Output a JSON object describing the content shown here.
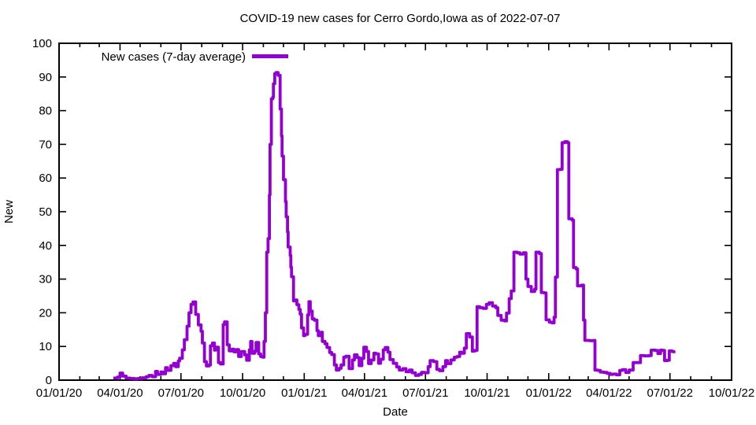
{
  "window": {
    "background": "#ffffff",
    "text_color": "#000000"
  },
  "chart_data": {
    "type": "line",
    "title": "COVID-19 new cases for Cerro Gordo,Iowa as of 2022-07-07",
    "xlabel": "Date",
    "ylabel": "New",
    "grid": false,
    "legend": {
      "position": "top-left-inside",
      "entries": [
        {
          "label": "New cases (7-day average)",
          "color": "#9400d3"
        }
      ]
    },
    "line_color": "#9400d3",
    "line_style": "steps",
    "x_range": [
      "2020-01-01",
      "2022-10-01"
    ],
    "ylim": [
      0,
      100
    ],
    "y_ticks": [
      0,
      10,
      20,
      30,
      40,
      50,
      60,
      70,
      80,
      90,
      100
    ],
    "x_ticks": [
      {
        "date": "2020-01-01",
        "label": "01/01/20"
      },
      {
        "date": "2020-04-01",
        "label": "04/01/20"
      },
      {
        "date": "2020-07-01",
        "label": "07/01/20"
      },
      {
        "date": "2020-10-01",
        "label": "10/01/20"
      },
      {
        "date": "2021-01-01",
        "label": "01/01/21"
      },
      {
        "date": "2021-04-01",
        "label": "04/01/21"
      },
      {
        "date": "2021-07-01",
        "label": "07/01/21"
      },
      {
        "date": "2021-10-01",
        "label": "10/01/21"
      },
      {
        "date": "2022-01-01",
        "label": "01/01/22"
      },
      {
        "date": "2022-04-01",
        "label": "04/01/22"
      },
      {
        "date": "2022-07-01",
        "label": "07/01/22"
      },
      {
        "date": "2022-10-01",
        "label": "10/01/22"
      }
    ],
    "minor_x_ticks": "monthly",
    "series": [
      {
        "name": "New cases (7-day average)",
        "color": "#9400d3",
        "points": [
          [
            "2020-03-22",
            0.6
          ],
          [
            "2020-03-28",
            0.9
          ],
          [
            "2020-04-01",
            2.1
          ],
          [
            "2020-04-05",
            1.2
          ],
          [
            "2020-04-10",
            0.6
          ],
          [
            "2020-04-16",
            0.5
          ],
          [
            "2020-04-22",
            0.4
          ],
          [
            "2020-04-28",
            0.5
          ],
          [
            "2020-05-04",
            0.7
          ],
          [
            "2020-05-10",
            1.0
          ],
          [
            "2020-05-14",
            1.4
          ],
          [
            "2020-05-19",
            1.0
          ],
          [
            "2020-05-24",
            2.6
          ],
          [
            "2020-05-27",
            1.7
          ],
          [
            "2020-06-01",
            2.4
          ],
          [
            "2020-06-04",
            1.9
          ],
          [
            "2020-06-08",
            3.7
          ],
          [
            "2020-06-11",
            2.9
          ],
          [
            "2020-06-16",
            4.3
          ],
          [
            "2020-06-20",
            5.0
          ],
          [
            "2020-06-23",
            4.0
          ],
          [
            "2020-06-27",
            5.7
          ],
          [
            "2020-06-29",
            6.5
          ],
          [
            "2020-07-03",
            9.0
          ],
          [
            "2020-07-06",
            12.0
          ],
          [
            "2020-07-10",
            16.0
          ],
          [
            "2020-07-13",
            20.0
          ],
          [
            "2020-07-16",
            22.5
          ],
          [
            "2020-07-19",
            23.2
          ],
          [
            "2020-07-23",
            19.5
          ],
          [
            "2020-07-27",
            16.4
          ],
          [
            "2020-07-31",
            14.5
          ],
          [
            "2020-08-02",
            11.0
          ],
          [
            "2020-08-05",
            5.5
          ],
          [
            "2020-08-08",
            4.2
          ],
          [
            "2020-08-12",
            4.5
          ],
          [
            "2020-08-14",
            10.2
          ],
          [
            "2020-08-17",
            11.0
          ],
          [
            "2020-08-20",
            8.9
          ],
          [
            "2020-08-22",
            9.8
          ],
          [
            "2020-08-26",
            5.2
          ],
          [
            "2020-08-29",
            4.8
          ],
          [
            "2020-09-02",
            16.5
          ],
          [
            "2020-09-04",
            17.3
          ],
          [
            "2020-09-08",
            10.5
          ],
          [
            "2020-09-11",
            8.7
          ],
          [
            "2020-09-15",
            9.2
          ],
          [
            "2020-09-18",
            8.4
          ],
          [
            "2020-09-22",
            9.1
          ],
          [
            "2020-09-25",
            7.0
          ],
          [
            "2020-09-29",
            8.5
          ],
          [
            "2020-10-04",
            7.5
          ],
          [
            "2020-10-07",
            5.9
          ],
          [
            "2020-10-11",
            9.0
          ],
          [
            "2020-10-13",
            11.5
          ],
          [
            "2020-10-15",
            8.0
          ],
          [
            "2020-10-19",
            8.6
          ],
          [
            "2020-10-21",
            11.2
          ],
          [
            "2020-10-25",
            7.8
          ],
          [
            "2020-10-28",
            7.0
          ],
          [
            "2020-10-31",
            6.8
          ],
          [
            "2020-11-02",
            11.5
          ],
          [
            "2020-11-04",
            20.0
          ],
          [
            "2020-11-06",
            38.0
          ],
          [
            "2020-11-08",
            42.0
          ],
          [
            "2020-11-10",
            55.0
          ],
          [
            "2020-11-11",
            70.0
          ],
          [
            "2020-11-13",
            83.5
          ],
          [
            "2020-11-15",
            84.0
          ],
          [
            "2020-11-16",
            88.0
          ],
          [
            "2020-11-18",
            91.0
          ],
          [
            "2020-11-20",
            91.3
          ],
          [
            "2020-11-23",
            90.5
          ],
          [
            "2020-11-26",
            80.5
          ],
          [
            "2020-11-28",
            72.5
          ],
          [
            "2020-11-29",
            66.5
          ],
          [
            "2020-12-01",
            59.5
          ],
          [
            "2020-12-04",
            53.0
          ],
          [
            "2020-12-05",
            48.5
          ],
          [
            "2020-12-07",
            44.0
          ],
          [
            "2020-12-08",
            39.5
          ],
          [
            "2020-12-11",
            37.0
          ],
          [
            "2020-12-12",
            33.5
          ],
          [
            "2020-12-13",
            30.7
          ],
          [
            "2020-12-16",
            23.5
          ],
          [
            "2020-12-19",
            23.8
          ],
          [
            "2020-12-21",
            22.4
          ],
          [
            "2020-12-24",
            21.0
          ],
          [
            "2020-12-26",
            19.6
          ],
          [
            "2020-12-28",
            15.5
          ],
          [
            "2020-12-31",
            13.2
          ],
          [
            "2021-01-02",
            13.6
          ],
          [
            "2021-01-06",
            19.4
          ],
          [
            "2021-01-08",
            23.3
          ],
          [
            "2021-01-10",
            20.5
          ],
          [
            "2021-01-13",
            18.2
          ],
          [
            "2021-01-16",
            17.8
          ],
          [
            "2021-01-20",
            14.7
          ],
          [
            "2021-01-22",
            13.2
          ],
          [
            "2021-01-26",
            14.2
          ],
          [
            "2021-01-28",
            11.5
          ],
          [
            "2021-02-01",
            10.8
          ],
          [
            "2021-02-04",
            9.7
          ],
          [
            "2021-02-08",
            8.2
          ],
          [
            "2021-02-11",
            7.6
          ],
          [
            "2021-02-15",
            4.5
          ],
          [
            "2021-02-18",
            3.0
          ],
          [
            "2021-02-22",
            3.5
          ],
          [
            "2021-02-25",
            4.5
          ],
          [
            "2021-03-01",
            6.8
          ],
          [
            "2021-03-04",
            7.1
          ],
          [
            "2021-03-09",
            3.4
          ],
          [
            "2021-03-14",
            6.0
          ],
          [
            "2021-03-17",
            7.5
          ],
          [
            "2021-03-21",
            6.7
          ],
          [
            "2021-03-24",
            4.3
          ],
          [
            "2021-03-28",
            6.5
          ],
          [
            "2021-03-31",
            9.8
          ],
          [
            "2021-04-04",
            8.5
          ],
          [
            "2021-04-07",
            4.9
          ],
          [
            "2021-04-11",
            6.0
          ],
          [
            "2021-04-15",
            8.0
          ],
          [
            "2021-04-18",
            7.8
          ],
          [
            "2021-04-22",
            5.0
          ],
          [
            "2021-04-25",
            6.2
          ],
          [
            "2021-04-29",
            9.0
          ],
          [
            "2021-05-02",
            9.7
          ],
          [
            "2021-05-06",
            8.3
          ],
          [
            "2021-05-09",
            6.1
          ],
          [
            "2021-05-14",
            5.0
          ],
          [
            "2021-05-19",
            3.9
          ],
          [
            "2021-05-23",
            3.0
          ],
          [
            "2021-05-28",
            3.4
          ],
          [
            "2021-06-02",
            2.5
          ],
          [
            "2021-06-07",
            3.0
          ],
          [
            "2021-06-11",
            2.2
          ],
          [
            "2021-06-16",
            1.4
          ],
          [
            "2021-06-21",
            1.7
          ],
          [
            "2021-06-25",
            2.3
          ],
          [
            "2021-06-30",
            2.2
          ],
          [
            "2021-07-05",
            4.0
          ],
          [
            "2021-07-08",
            5.8
          ],
          [
            "2021-07-13",
            5.5
          ],
          [
            "2021-07-18",
            3.2
          ],
          [
            "2021-07-22",
            2.8
          ],
          [
            "2021-07-27",
            4.0
          ],
          [
            "2021-07-31",
            5.8
          ],
          [
            "2021-08-03",
            4.9
          ],
          [
            "2021-08-08",
            6.0
          ],
          [
            "2021-08-13",
            6.8
          ],
          [
            "2021-08-17",
            7.0
          ],
          [
            "2021-08-21",
            8.3
          ],
          [
            "2021-08-24",
            8.0
          ],
          [
            "2021-08-28",
            9.5
          ],
          [
            "2021-08-31",
            13.8
          ],
          [
            "2021-09-05",
            12.8
          ],
          [
            "2021-09-09",
            8.6
          ],
          [
            "2021-09-12",
            8.8
          ],
          [
            "2021-09-16",
            21.8
          ],
          [
            "2021-09-20",
            21.5
          ],
          [
            "2021-09-25",
            21.3
          ],
          [
            "2021-09-30",
            22.5
          ],
          [
            "2021-10-04",
            23.0
          ],
          [
            "2021-10-09",
            22.0
          ],
          [
            "2021-10-14",
            21.5
          ],
          [
            "2021-10-17",
            19.2
          ],
          [
            "2021-10-22",
            17.8
          ],
          [
            "2021-10-27",
            17.6
          ],
          [
            "2021-10-30",
            19.9
          ],
          [
            "2021-11-03",
            24.2
          ],
          [
            "2021-11-06",
            26.5
          ],
          [
            "2021-11-10",
            38.0
          ],
          [
            "2021-11-15",
            37.8
          ],
          [
            "2021-11-19",
            37.4
          ],
          [
            "2021-11-24",
            37.8
          ],
          [
            "2021-11-28",
            30.0
          ],
          [
            "2021-12-01",
            27.8
          ],
          [
            "2021-12-06",
            26.3
          ],
          [
            "2021-12-11",
            27.0
          ],
          [
            "2021-12-13",
            38.0
          ],
          [
            "2021-12-18",
            37.6
          ],
          [
            "2021-12-21",
            26.0
          ],
          [
            "2021-12-25",
            25.9
          ],
          [
            "2021-12-28",
            17.9
          ],
          [
            "2022-01-02",
            17.2
          ],
          [
            "2022-01-06",
            17.0
          ],
          [
            "2022-01-09",
            18.7
          ],
          [
            "2022-01-11",
            30.6
          ],
          [
            "2022-01-14",
            62.5
          ],
          [
            "2022-01-18",
            62.6
          ],
          [
            "2022-01-21",
            70.5
          ],
          [
            "2022-01-25",
            70.8
          ],
          [
            "2022-01-29",
            70.5
          ],
          [
            "2022-01-31",
            47.9
          ],
          [
            "2022-02-05",
            47.5
          ],
          [
            "2022-02-07",
            33.4
          ],
          [
            "2022-02-11",
            33.0
          ],
          [
            "2022-02-13",
            28.0
          ],
          [
            "2022-02-19",
            28.2
          ],
          [
            "2022-02-22",
            17.8
          ],
          [
            "2022-02-24",
            11.8
          ],
          [
            "2022-03-03",
            11.7
          ],
          [
            "2022-03-09",
            11.8
          ],
          [
            "2022-03-11",
            3.0
          ],
          [
            "2022-03-15",
            2.9
          ],
          [
            "2022-03-19",
            2.4
          ],
          [
            "2022-03-24",
            2.3
          ],
          [
            "2022-03-29",
            2.0
          ],
          [
            "2022-04-03",
            1.7
          ],
          [
            "2022-04-07",
            1.8
          ],
          [
            "2022-04-12",
            1.6
          ],
          [
            "2022-04-17",
            2.9
          ],
          [
            "2022-04-21",
            3.1
          ],
          [
            "2022-04-26",
            2.3
          ],
          [
            "2022-05-01",
            3.0
          ],
          [
            "2022-05-07",
            5.2
          ],
          [
            "2022-05-13",
            5.2
          ],
          [
            "2022-05-18",
            7.3
          ],
          [
            "2022-05-24",
            7.2
          ],
          [
            "2022-05-30",
            7.3
          ],
          [
            "2022-06-03",
            8.9
          ],
          [
            "2022-06-09",
            8.8
          ],
          [
            "2022-06-13",
            7.9
          ],
          [
            "2022-06-17",
            8.9
          ],
          [
            "2022-06-20",
            8.8
          ],
          [
            "2022-06-23",
            5.8
          ],
          [
            "2022-06-27",
            5.9
          ],
          [
            "2022-06-30",
            8.7
          ],
          [
            "2022-07-04",
            8.5
          ],
          [
            "2022-07-07",
            8.0
          ]
        ]
      }
    ]
  }
}
